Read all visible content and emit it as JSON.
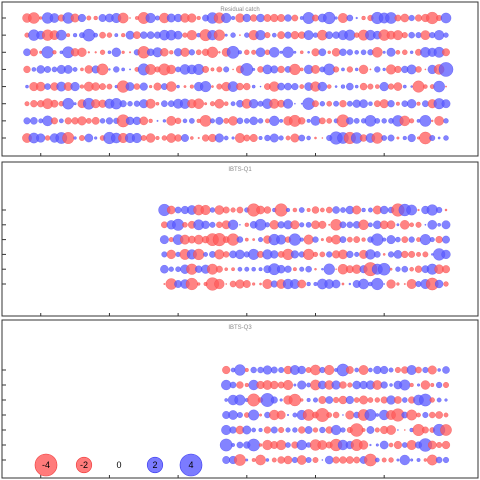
{
  "chart_data": [
    {
      "type": "scatter",
      "subtype": "bubble-residuals",
      "title": "Residual catch",
      "x_range": [
        1963,
        2024
      ],
      "ages": [
        1,
        2,
        3,
        4,
        5,
        6,
        7,
        8
      ],
      "first_year": 1963,
      "last_year": 2024,
      "residual_range": [
        -4,
        4
      ],
      "colors": {
        "positive": "#5a5aff",
        "negative": "#ff5a5a"
      }
    },
    {
      "type": "scatter",
      "subtype": "bubble-residuals",
      "title": "IBTS-Q1",
      "x_range": [
        1963,
        2024
      ],
      "ages": [
        1,
        2,
        3,
        4,
        5,
        6
      ],
      "first_year": 1983,
      "last_year": 2024,
      "residual_range": [
        -4,
        4
      ],
      "colors": {
        "positive": "#5a5aff",
        "negative": "#ff5a5a"
      }
    },
    {
      "type": "scatter",
      "subtype": "bubble-residuals",
      "title": "IBTS-Q3",
      "x_range": [
        1963,
        2024
      ],
      "ages": [
        1,
        2,
        3,
        4,
        5,
        6,
        7
      ],
      "first_year": 1992,
      "last_year": 2024,
      "residual_range": [
        -4,
        4
      ],
      "colors": {
        "positive": "#5a5aff",
        "negative": "#ff5a5a"
      }
    }
  ],
  "legend": {
    "items": [
      {
        "label": "-4",
        "value": -4
      },
      {
        "label": "-2",
        "value": -2
      },
      {
        "label": "0",
        "value": 0
      },
      {
        "label": "2",
        "value": 2
      },
      {
        "label": "4",
        "value": 4
      }
    ]
  }
}
